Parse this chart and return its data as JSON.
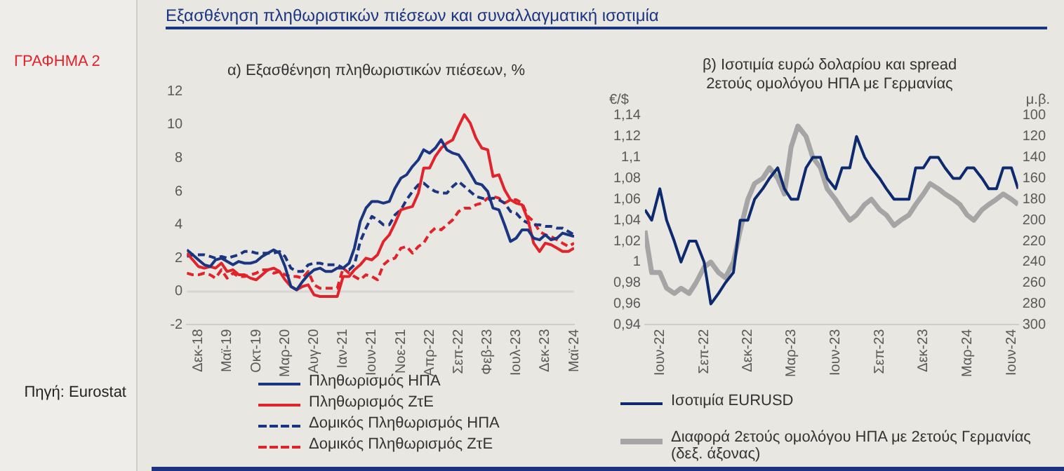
{
  "chart_data": [
    {
      "type": "line",
      "title": "α) Εξασθένηση πληθωριστικών πιέσεων, %",
      "annotations": [
        "ΓΡΑΦΗΜΑ 2",
        "Εξασθένηση πληθωριστικών πιέσεων και συναλλαγματική ισοτιμία",
        "Πηγή: Eurostat"
      ],
      "x": [
        "2018-10",
        "2018-11",
        "2018-12",
        "2019-01",
        "2019-02",
        "2019-03",
        "2019-04",
        "2019-05",
        "2019-06",
        "2019-07",
        "2019-08",
        "2019-09",
        "2019-10",
        "2019-11",
        "2019-12",
        "2020-01",
        "2020-02",
        "2020-03",
        "2020-04",
        "2020-05",
        "2020-06",
        "2020-07",
        "2020-08",
        "2020-09",
        "2020-10",
        "2020-11",
        "2020-12",
        "2021-01",
        "2021-02",
        "2021-03",
        "2021-04",
        "2021-05",
        "2021-06",
        "2021-07",
        "2021-08",
        "2021-09",
        "2021-10",
        "2021-11",
        "2021-12",
        "2022-01",
        "2022-02",
        "2022-03",
        "2022-04",
        "2022-05",
        "2022-06",
        "2022-07",
        "2022-08",
        "2022-09",
        "2022-10",
        "2022-11",
        "2022-12",
        "2023-01",
        "2023-02",
        "2023-03",
        "2023-04",
        "2023-05",
        "2023-06",
        "2023-07",
        "2023-08",
        "2023-09",
        "2023-10",
        "2023-11",
        "2023-12",
        "2024-01",
        "2024-02",
        "2024-03",
        "2024-04",
        "2024-05"
      ],
      "series": [
        {
          "name": "Πληθωρισμός ΗΠΑ",
          "color": "#1c3580",
          "line_style": "solid",
          "values": [
            2.5,
            2.2,
            1.9,
            1.6,
            1.5,
            1.9,
            2.0,
            1.8,
            1.6,
            1.8,
            1.7,
            1.7,
            1.8,
            2.1,
            2.3,
            2.5,
            2.3,
            1.5,
            0.3,
            0.1,
            0.6,
            1.0,
            1.3,
            1.4,
            1.2,
            1.2,
            1.4,
            1.4,
            1.7,
            2.6,
            4.2,
            5.0,
            5.4,
            5.4,
            5.3,
            5.4,
            6.2,
            6.8,
            7.0,
            7.5,
            7.9,
            8.5,
            8.3,
            8.6,
            9.1,
            8.5,
            8.3,
            8.2,
            7.7,
            7.1,
            6.5,
            6.4,
            6.0,
            5.0,
            4.9,
            4.0,
            3.0,
            3.2,
            3.7,
            3.7,
            3.2,
            3.1,
            3.4,
            3.1,
            3.2,
            3.5,
            3.4,
            3.3
          ]
        },
        {
          "name": "Πληθωρισμός ΖτΕ",
          "color": "#e1232b",
          "line_style": "solid",
          "values": [
            2.3,
            1.9,
            1.5,
            1.4,
            1.5,
            1.4,
            1.7,
            1.2,
            1.3,
            1.0,
            1.0,
            0.8,
            0.7,
            1.0,
            1.3,
            1.4,
            1.2,
            0.7,
            0.3,
            0.1,
            0.3,
            0.4,
            -0.2,
            -0.3,
            -0.3,
            -0.3,
            -0.3,
            0.9,
            0.9,
            1.3,
            1.6,
            2.0,
            1.9,
            2.2,
            3.0,
            3.4,
            4.1,
            4.9,
            5.0,
            5.1,
            5.9,
            7.4,
            7.4,
            8.1,
            8.6,
            8.9,
            9.1,
            9.9,
            10.6,
            10.1,
            9.2,
            8.6,
            8.5,
            6.9,
            7.0,
            6.1,
            5.5,
            5.3,
            5.2,
            4.3,
            2.9,
            2.4,
            2.9,
            2.8,
            2.6,
            2.4,
            2.4,
            2.6
          ]
        },
        {
          "name": "Δομικός Πληθωρισμός ΗΠΑ",
          "color": "#1c3580",
          "line_style": "dashed",
          "values": [
            2.1,
            2.2,
            2.2,
            2.2,
            2.1,
            2.0,
            2.1,
            2.0,
            2.1,
            2.2,
            2.4,
            2.4,
            2.3,
            2.3,
            2.3,
            2.3,
            2.4,
            2.1,
            1.4,
            1.2,
            1.2,
            1.6,
            1.7,
            1.7,
            1.6,
            1.6,
            1.6,
            1.4,
            1.3,
            1.6,
            3.0,
            3.8,
            4.5,
            4.3,
            4.0,
            4.0,
            4.6,
            4.9,
            5.5,
            6.0,
            6.4,
            6.5,
            6.2,
            6.0,
            5.9,
            5.9,
            6.3,
            6.6,
            6.3,
            6.0,
            5.7,
            5.6,
            5.5,
            5.6,
            5.5,
            5.3,
            4.8,
            4.7,
            4.3,
            4.1,
            4.0,
            4.0,
            3.9,
            3.9,
            3.8,
            3.8,
            3.6,
            3.4
          ]
        },
        {
          "name": "Δομικός Πληθωρισμός ΖτΕ",
          "color": "#e1232b",
          "line_style": "dashed",
          "values": [
            1.1,
            1.0,
            1.0,
            1.1,
            1.0,
            0.8,
            1.3,
            0.8,
            1.1,
            0.9,
            0.9,
            1.0,
            1.1,
            1.3,
            1.3,
            1.1,
            1.2,
            1.0,
            0.9,
            0.9,
            0.8,
            1.2,
            0.4,
            0.2,
            0.2,
            0.2,
            0.2,
            1.4,
            1.1,
            0.9,
            0.7,
            1.0,
            0.9,
            0.7,
            1.6,
            1.9,
            2.0,
            2.6,
            2.7,
            2.3,
            2.7,
            2.9,
            3.5,
            3.8,
            3.7,
            4.0,
            4.3,
            4.8,
            5.0,
            5.0,
            5.2,
            5.3,
            5.6,
            5.7,
            5.6,
            5.3,
            5.5,
            5.5,
            5.3,
            4.5,
            4.2,
            3.6,
            3.4,
            3.3,
            3.1,
            2.9,
            2.7,
            2.9
          ]
        }
      ],
      "xlim": [
        "2018-10",
        "2024-05"
      ],
      "xticks": [
        {
          "value": "2018-12",
          "label": "Δεκ-18"
        },
        {
          "value": "2019-05",
          "label": "Μαϊ-19"
        },
        {
          "value": "2019-10",
          "label": "Οκτ-19"
        },
        {
          "value": "2020-03",
          "label": "Μαρ-20"
        },
        {
          "value": "2020-08",
          "label": "Αυγ-20"
        },
        {
          "value": "2021-01",
          "label": "Ιαν-21"
        },
        {
          "value": "2021-06",
          "label": "Ιουν-21"
        },
        {
          "value": "2021-11",
          "label": "Νοε-21"
        },
        {
          "value": "2022-04",
          "label": "Απρ-22"
        },
        {
          "value": "2022-09",
          "label": "Σεπ-22"
        },
        {
          "value": "2023-02",
          "label": "Φεβ-23"
        },
        {
          "value": "2023-07",
          "label": "Ιουλ-23"
        },
        {
          "value": "2023-12",
          "label": "Δεκ-23"
        },
        {
          "value": "2024-05",
          "label": "Μαϊ-24"
        }
      ],
      "ylim": [
        -2,
        12
      ],
      "yticks": [
        -2,
        0,
        2,
        4,
        6,
        8,
        10,
        12
      ],
      "ref_lines": [
        {
          "axis": "y",
          "value": 0,
          "color": "#d6d6d6"
        }
      ],
      "marker": "none",
      "legend": "bottom"
    },
    {
      "type": "line",
      "title": "β) Ισοτιμία ευρώ δολαρίου και spread 2ετούς ομολόγου ΗΠΑ με Γερμανίας",
      "ylabel": "€/$",
      "y2label": "μ.β.",
      "x": [
        "2022-05-01",
        "2022-05-15",
        "2022-06-01",
        "2022-06-15",
        "2022-07-01",
        "2022-07-15",
        "2022-08-01",
        "2022-08-15",
        "2022-09-01",
        "2022-09-15",
        "2022-10-01",
        "2022-10-15",
        "2022-11-01",
        "2022-11-15",
        "2022-12-01",
        "2022-12-15",
        "2023-01-01",
        "2023-01-15",
        "2023-02-01",
        "2023-02-15",
        "2023-03-01",
        "2023-03-15",
        "2023-04-01",
        "2023-04-15",
        "2023-05-01",
        "2023-05-15",
        "2023-06-01",
        "2023-06-15",
        "2023-07-01",
        "2023-07-15",
        "2023-08-01",
        "2023-08-15",
        "2023-09-01",
        "2023-09-15",
        "2023-10-01",
        "2023-10-15",
        "2023-11-01",
        "2023-11-15",
        "2023-12-01",
        "2023-12-15",
        "2024-01-01",
        "2024-01-15",
        "2024-02-01",
        "2024-02-15",
        "2024-03-01",
        "2024-03-15",
        "2024-04-01",
        "2024-04-15",
        "2024-05-01",
        "2024-05-15",
        "2024-06-01",
        "2024-06-15"
      ],
      "series": [
        {
          "name": "Ισοτιμία EURUSD",
          "color": "#0d2a6e",
          "values": [
            1.05,
            1.04,
            1.07,
            1.04,
            1.02,
            1.0,
            1.02,
            1.02,
            1.0,
            0.96,
            0.97,
            0.98,
            0.99,
            1.04,
            1.04,
            1.06,
            1.07,
            1.08,
            1.09,
            1.07,
            1.06,
            1.06,
            1.09,
            1.1,
            1.1,
            1.08,
            1.07,
            1.09,
            1.09,
            1.12,
            1.1,
            1.09,
            1.08,
            1.07,
            1.06,
            1.06,
            1.06,
            1.09,
            1.09,
            1.1,
            1.1,
            1.09,
            1.08,
            1.08,
            1.09,
            1.09,
            1.08,
            1.07,
            1.07,
            1.09,
            1.09,
            1.07
          ]
        },
        {
          "name": "Διαφορά 2ετούς ομολόγου ΗΠΑ με 2ετούς Γερμανίας (δεξ. άξονας)",
          "color": "#a5a5a5",
          "axis": "y2",
          "values": [
            210,
            250,
            250,
            265,
            270,
            265,
            270,
            260,
            245,
            240,
            250,
            255,
            240,
            210,
            180,
            165,
            160,
            150,
            160,
            175,
            130,
            110,
            120,
            140,
            150,
            170,
            180,
            190,
            200,
            195,
            185,
            180,
            190,
            195,
            205,
            200,
            195,
            185,
            175,
            165,
            170,
            175,
            180,
            185,
            195,
            200,
            190,
            185,
            180,
            175,
            180,
            185
          ]
        }
      ],
      "xlim": [
        "2022-05-01",
        "2024-06-15"
      ],
      "xticks": [
        {
          "value": "2022-06-01",
          "label": "Ιουν-22"
        },
        {
          "value": "2022-09-01",
          "label": "Σεπ-22"
        },
        {
          "value": "2022-12-01",
          "label": "Δεκ-22"
        },
        {
          "value": "2023-03-01",
          "label": "Μαρ-23"
        },
        {
          "value": "2023-06-01",
          "label": "Ιουν-23"
        },
        {
          "value": "2023-09-01",
          "label": "Σεπ-23"
        },
        {
          "value": "2023-12-01",
          "label": "Δεκ-23"
        },
        {
          "value": "2024-03-01",
          "label": "Μαρ-24"
        },
        {
          "value": "2024-06-01",
          "label": "Ιουν-24"
        }
      ],
      "ylim": [
        0.94,
        1.14
      ],
      "yticks": [
        {
          "value": 0.94,
          "label": "0,94"
        },
        {
          "value": 0.96,
          "label": "0,96"
        },
        {
          "value": 0.98,
          "label": "0,98"
        },
        1,
        {
          "value": 1.02,
          "label": "1,02"
        },
        {
          "value": 1.04,
          "label": "1,04"
        },
        {
          "value": 1.06,
          "label": "1,06"
        },
        {
          "value": 1.08,
          "label": "1,08"
        },
        {
          "value": 1.1,
          "label": "1,1"
        },
        {
          "value": 1.12,
          "label": "1,12"
        },
        {
          "value": 1.14,
          "label": "1,14"
        }
      ],
      "y2lim": [
        300,
        100
      ],
      "y2ticks": [
        100,
        120,
        140,
        160,
        180,
        200,
        220,
        240,
        260,
        280,
        300
      ],
      "marker": "none",
      "legend": "bottom"
    }
  ]
}
